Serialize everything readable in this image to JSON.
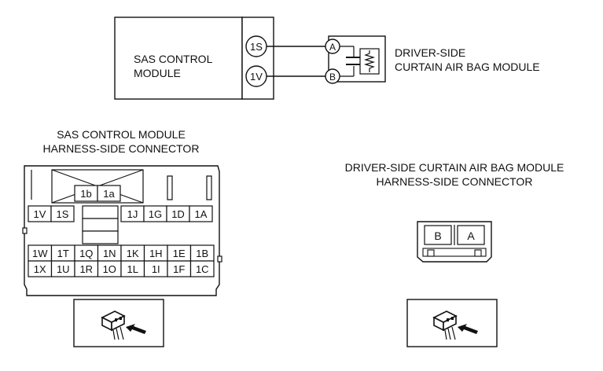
{
  "schematic": {
    "sas_module_label": [
      "SAS CONTROL",
      "MODULE"
    ],
    "sas_terminals": [
      "1S",
      "1V"
    ],
    "airbag_terminals": [
      "A",
      "B"
    ],
    "airbag_module_label": [
      "DRIVER-SIDE",
      "CURTAIN AIR BAG MODULE"
    ]
  },
  "sas_connector": {
    "title": [
      "SAS CONTROL MODULE",
      "HARNESS-SIDE CONNECTOR"
    ],
    "top_pins": [
      "1b",
      "1a"
    ],
    "row1_left": [
      "1V",
      "1S"
    ],
    "row1_right": [
      "1J",
      "1G",
      "1D",
      "1A"
    ],
    "row2": [
      "1W",
      "1T",
      "1Q",
      "1N",
      "1K",
      "1H",
      "1E",
      "1B"
    ],
    "row3": [
      "1X",
      "1U",
      "1R",
      "1O",
      "1L",
      "1I",
      "1F",
      "1C"
    ]
  },
  "airbag_connector": {
    "title": [
      "DRIVER-SIDE CURTAIN AIR BAG MODULE",
      "HARNESS-SIDE CONNECTOR"
    ],
    "pins": [
      "B",
      "A"
    ]
  },
  "icons": [
    "connector-view-icon",
    "connector-view-icon"
  ]
}
